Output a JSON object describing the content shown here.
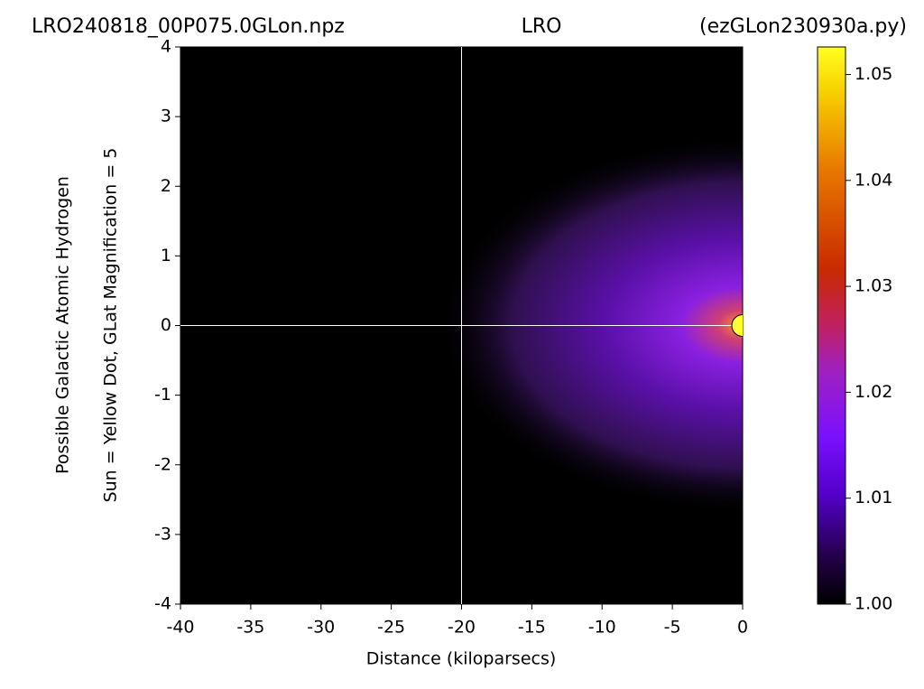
{
  "chart_data": {
    "type": "heatmap",
    "title_left": "LRO240818_00P075.0GLon.npz",
    "title_center": "LRO",
    "title_right": "(ezGLon230930a.py)",
    "ylabel_lines": [
      "Possible Galactic Atomic Hydrogen",
      "Sun = Yellow Dot, GLat Magnification = 5"
    ],
    "xlabel": "Distance (kiloparsecs)",
    "xlim": [
      -40,
      0
    ],
    "xticks": [
      -40,
      -35,
      -30,
      -25,
      -20,
      -15,
      -10,
      -5,
      0
    ],
    "ylim": [
      -4,
      4
    ],
    "yticks": [
      -4,
      -3,
      -2,
      -1,
      0,
      1,
      2,
      3,
      4
    ],
    "crosshair": {
      "x": -20,
      "y": 0
    },
    "sun": {
      "x": 0,
      "y": 0,
      "color": "#ffff33"
    },
    "clim": [
      1.0,
      1.0526
    ],
    "cticks": [
      {
        "value": 1.0,
        "label": "1.00"
      },
      1.01,
      1.02,
      1.03,
      1.04,
      1.05
    ]
  }
}
